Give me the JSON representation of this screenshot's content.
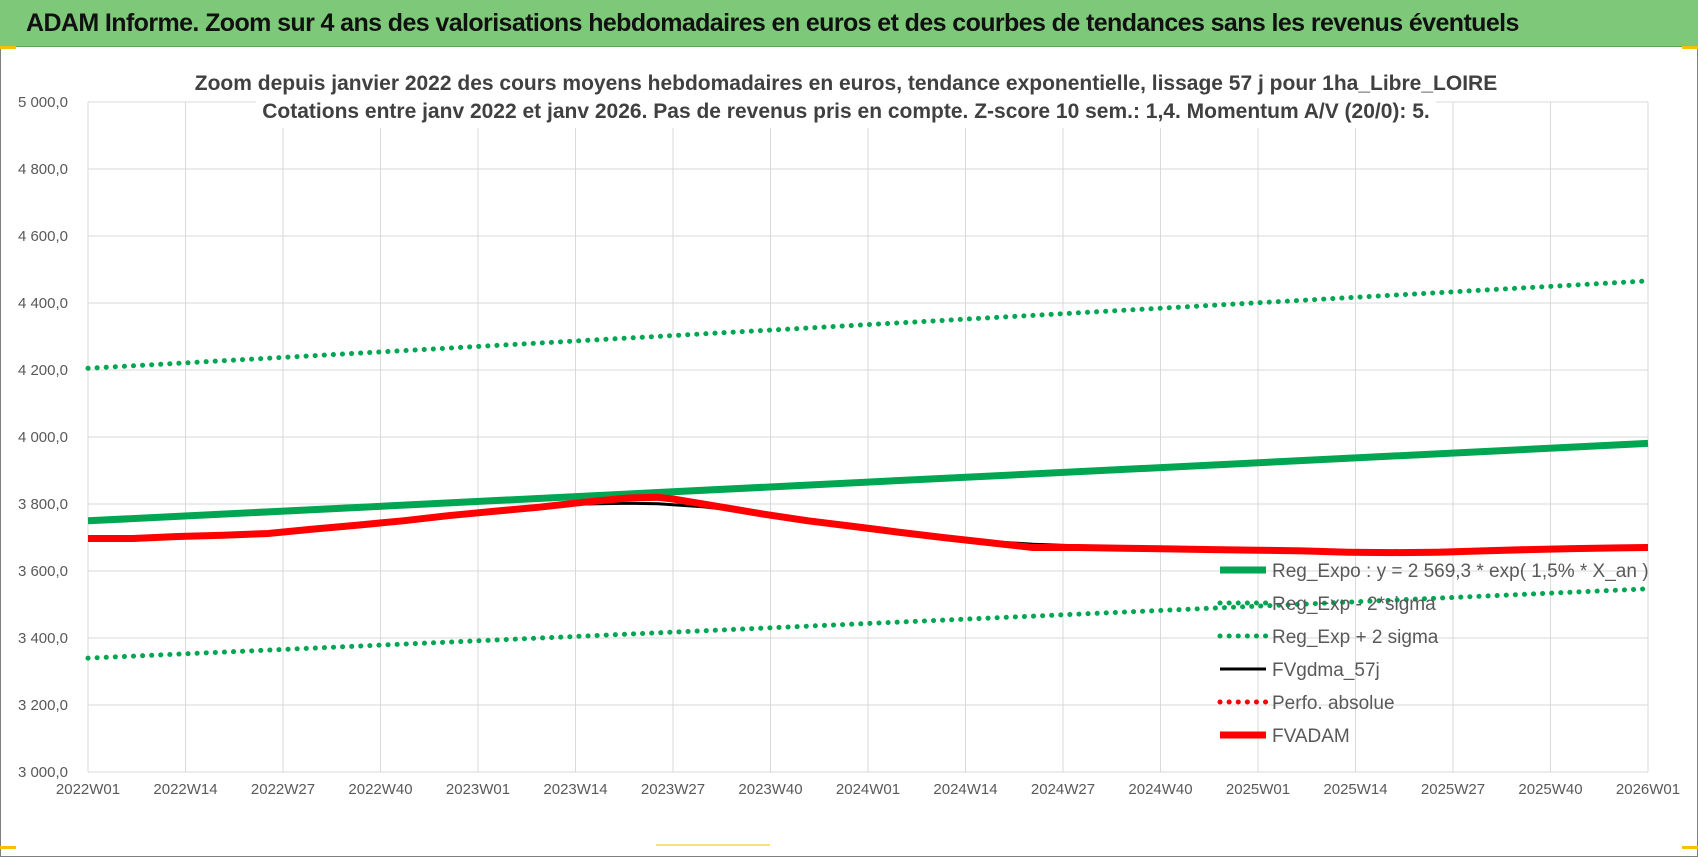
{
  "header": {
    "title": "ADAM Informe. Zoom sur 4 ans des valorisations hebdomadaires en euros et des courbes de tendances sans les revenus éventuels"
  },
  "colors": {
    "header_bg": "#7ec979",
    "accent_corner": "#f2c200",
    "trend": "#00a651",
    "fvgdma": "#000000",
    "fvadam": "#ff0000",
    "perfo": "#ff0000"
  },
  "chart_data": {
    "type": "line",
    "title": [
      "Zoom depuis janvier 2022 des cours moyens hebdomadaires en euros, tendance exponentielle, lissage 57 j pour 1ha_Libre_LOIRE",
      "Cotations entre janv 2022 et janv 2026. Pas de revenus pris en compte. Z-score 10 sem.: 1,4. Momentum A/V (20/0): 5."
    ],
    "x_tick_labels": [
      "2022W01",
      "2022W14",
      "2022W27",
      "2022W40",
      "2023W01",
      "2023W14",
      "2023W27",
      "2023W40",
      "2024W01",
      "2024W14",
      "2024W27",
      "2024W40",
      "2025W01",
      "2025W14",
      "2025W27",
      "2025W40",
      "2026W01"
    ],
    "y_tick_labels": [
      "3 000,0",
      "3 200,0",
      "3 400,0",
      "3 600,0",
      "3 800,0",
      "4 000,0",
      "4 200,0",
      "4 400,0",
      "4 600,0",
      "4 800,0",
      "5 000,0"
    ],
    "ylim": [
      3000,
      5000
    ],
    "grid": true,
    "legend_position": "bottom-right",
    "series": [
      {
        "name": "Reg_Expo : y = 2 569,3 * exp( 1,5% * X_an )",
        "style": "solid-thick",
        "color": "#00a651",
        "x": [
          0,
          208
        ],
        "values": [
          3750,
          3981
        ]
      },
      {
        "name": "Reg_Exp - 2*sigma",
        "style": "dotted",
        "color": "#00a651",
        "x": [
          0,
          208
        ],
        "values": [
          3340,
          3547
        ]
      },
      {
        "name": "Reg_Exp + 2 sigma",
        "style": "dotted",
        "color": "#00a651",
        "x": [
          0,
          208
        ],
        "values": [
          4205,
          4466
        ]
      },
      {
        "name": "FVgdma_57j",
        "style": "solid",
        "color": "#000000",
        "x": [
          0,
          6,
          12,
          18,
          24,
          30,
          36,
          42,
          48,
          54,
          60,
          66,
          72,
          76,
          78,
          82,
          86,
          90,
          96,
          102,
          108,
          114,
          120,
          126,
          132,
          138,
          144,
          150,
          156,
          162,
          168,
          174,
          180,
          186,
          192,
          198,
          204,
          208
        ],
        "values": [
          3697,
          3697,
          3703,
          3707,
          3712,
          3725,
          3737,
          3750,
          3765,
          3778,
          3790,
          3800,
          3802,
          3801,
          3798,
          3792,
          3782,
          3768,
          3750,
          3733,
          3716,
          3700,
          3688,
          3680,
          3675,
          3670,
          3668,
          3665,
          3662,
          3658,
          3655,
          3655,
          3655,
          3658,
          3662,
          3665,
          3668,
          3668
        ]
      },
      {
        "name": "Perfo. absolue",
        "style": "dotted",
        "color": "#ff0000",
        "x": [],
        "values": []
      },
      {
        "name": "FVADAM",
        "style": "solid-thick",
        "color": "#ff0000",
        "x": [
          0,
          6,
          12,
          18,
          24,
          30,
          36,
          42,
          48,
          54,
          60,
          66,
          72,
          76,
          78,
          82,
          86,
          90,
          96,
          102,
          108,
          114,
          120,
          126,
          132,
          138,
          144,
          150,
          156,
          162,
          168,
          174,
          180,
          186,
          192,
          198,
          204,
          208
        ],
        "values": [
          3697,
          3697,
          3703,
          3707,
          3712,
          3725,
          3737,
          3750,
          3765,
          3778,
          3790,
          3805,
          3818,
          3820,
          3815,
          3800,
          3785,
          3770,
          3750,
          3733,
          3716,
          3700,
          3685,
          3670,
          3670,
          3668,
          3666,
          3664,
          3662,
          3660,
          3656,
          3655,
          3656,
          3660,
          3664,
          3667,
          3669,
          3670
        ]
      }
    ]
  }
}
